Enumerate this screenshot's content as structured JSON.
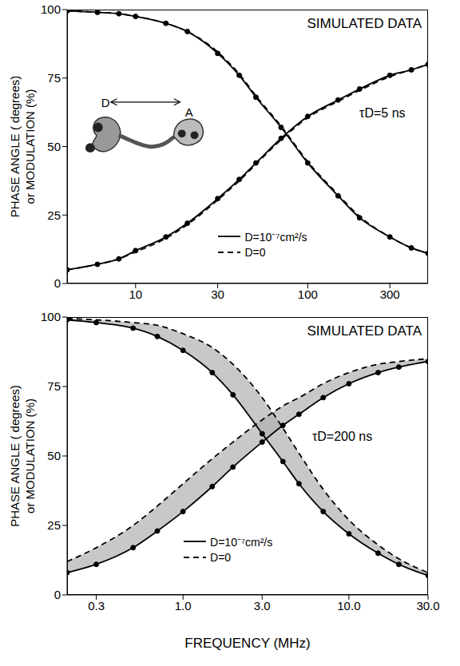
{
  "chart_data": [
    {
      "type": "line",
      "title": "SIMULATED DATA",
      "annotation": "τD=5 ns",
      "y_label": [
        "PHASE ANGLE ( degrees)",
        "or MODULATION (%)"
      ],
      "log": "x",
      "grid": false,
      "legend": "lower center",
      "xlim": [
        4,
        500
      ],
      "xticks": [
        10,
        30,
        100,
        300
      ],
      "ylim": [
        0,
        100
      ],
      "yticks": [
        0,
        25,
        50,
        75,
        100
      ],
      "x": [
        4,
        6,
        8,
        10,
        15,
        20,
        30,
        40,
        50,
        70,
        100,
        150,
        200,
        300,
        400,
        500
      ],
      "series": [
        {
          "name": "D=10⁻⁷cm²/s",
          "color": "#000000",
          "line_style": "solid",
          "phase": [
            5,
            7,
            9,
            12,
            17,
            22,
            31,
            38,
            44,
            53,
            61,
            67,
            71,
            76,
            78,
            80
          ],
          "modulation": [
            99.5,
            99,
            98.5,
            97.5,
            95,
            92,
            84,
            76,
            68,
            57,
            44,
            32,
            24,
            17,
            13,
            11
          ]
        },
        {
          "name": "D=0",
          "color": "#000000",
          "line_style": "dashed",
          "phase": [
            5,
            7,
            9,
            11.5,
            16.5,
            21.5,
            30.5,
            37.5,
            43.5,
            52.5,
            60.5,
            66.5,
            70.5,
            75.5,
            78,
            80
          ],
          "modulation": [
            99.5,
            99,
            98.5,
            97.5,
            95,
            92,
            84.5,
            76.5,
            68.5,
            57.5,
            44.5,
            32.5,
            24.5,
            17,
            13,
            11
          ]
        }
      ],
      "simulated_data": {
        "marker": "circle",
        "color": "#000000",
        "phase": [
          5,
          7,
          9,
          12,
          17,
          22,
          31,
          38,
          44,
          53,
          61,
          67,
          71,
          76,
          78,
          80
        ],
        "modulation": [
          99.5,
          99,
          98.5,
          97.5,
          95,
          92,
          84,
          76,
          68,
          57,
          44,
          32,
          24,
          17,
          13,
          11
        ]
      },
      "inset": {
        "labels": [
          "D",
          "A"
        ]
      }
    },
    {
      "type": "line",
      "title": "SIMULATED DATA",
      "annotation": "τD=200 ns",
      "y_label": [
        "PHASE ANGLE ( degrees)",
        "or MODULATION (%)"
      ],
      "x_label": "FREQUENCY (MHz)",
      "log": "x",
      "grid": false,
      "legend": "lower center",
      "xlim": [
        0.2,
        30
      ],
      "xticks": [
        0.3,
        {
          "value": 1,
          "label": "1.0"
        },
        {
          "value": 3,
          "label": "3.0"
        },
        {
          "value": 10,
          "label": "10.0"
        },
        {
          "value": 30,
          "label": "30.0"
        }
      ],
      "ylim": [
        0,
        100
      ],
      "yticks": [
        0,
        25,
        50,
        75,
        100
      ],
      "x": [
        0.2,
        0.3,
        0.5,
        0.7,
        1,
        1.5,
        2,
        3,
        4,
        5,
        7,
        10,
        15,
        20,
        30
      ],
      "series": [
        {
          "name": "D=10⁻⁷cm²/s",
          "color": "#000000",
          "line_style": "solid",
          "phase": [
            8,
            11,
            17,
            23,
            30,
            39,
            46,
            55,
            61,
            65,
            71,
            76,
            80,
            82,
            84
          ],
          "modulation": [
            99,
            98,
            96,
            93,
            88,
            80,
            72,
            58,
            48,
            40,
            30,
            22,
            15,
            11,
            7
          ]
        },
        {
          "name": "D=0",
          "color": "#000000",
          "line_style": "dashed",
          "phase": [
            12,
            17,
            25,
            32,
            40,
            49,
            55,
            63,
            68,
            71,
            76,
            80,
            83,
            84,
            85
          ],
          "modulation": [
            99.5,
            99,
            98,
            97,
            94,
            89,
            83,
            71,
            60,
            51,
            38,
            27,
            18,
            13,
            8
          ]
        }
      ],
      "simulated_data": {
        "marker": "circle",
        "color": "#000000",
        "phase": [
          8,
          11,
          17,
          23,
          30,
          39,
          46,
          55,
          61,
          65,
          71,
          76,
          80,
          82,
          84
        ],
        "modulation": [
          99,
          98,
          96,
          93,
          88,
          80,
          72,
          58,
          48,
          40,
          30,
          22,
          15,
          11,
          7
        ]
      }
    }
  ]
}
